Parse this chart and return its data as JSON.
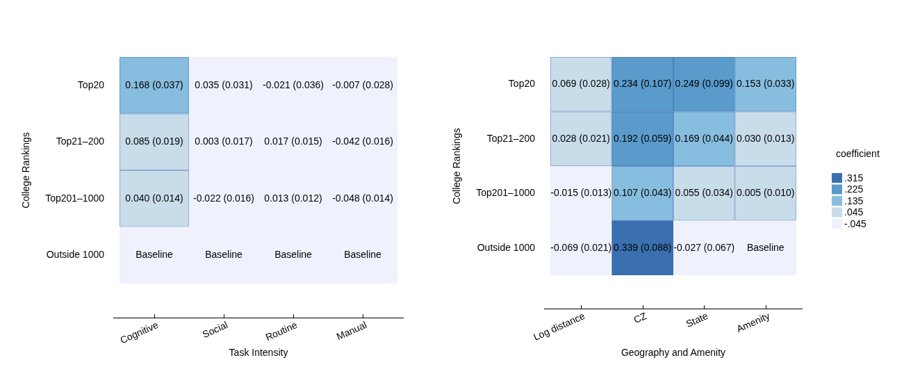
{
  "chart_data": [
    {
      "type": "heatmap",
      "xlabel": "Task Intensity",
      "ylabel": "College Rankings",
      "categories": [
        "Cognitive",
        "Social",
        "Routine",
        "Manual"
      ],
      "y_categories": [
        "Top20",
        "Top21–200",
        "Top201–1000",
        "Outside 1000"
      ],
      "cells": [
        [
          0.168,
          0.035,
          -0.021,
          -0.007
        ],
        [
          0.085,
          0.003,
          0.017,
          -0.042
        ],
        [
          0.04,
          -0.022,
          0.013,
          -0.048
        ],
        [
          null,
          null,
          null,
          null
        ]
      ],
      "cell_labels": [
        [
          "0.168",
          "0.035",
          "-0.021",
          "-0.007"
        ],
        [
          "0.085",
          "0.003",
          "0.017",
          "-0.042"
        ],
        [
          "0.040",
          "-0.022",
          "0.013",
          "-0.048"
        ],
        [
          "Baseline",
          "Baseline",
          "Baseline",
          "Baseline"
        ]
      ],
      "annotations": [
        "(0.037)",
        "(0.031)",
        "(0.036)",
        "(0.028)",
        "(0.019)",
        "(0.017)",
        "(0.015)",
        "(0.016)",
        "(0.014)",
        "(0.016)",
        "(0.012)",
        "(0.014)"
      ],
      "colors": [
        "#87bddf",
        "#eff2fd",
        "#eff2fd",
        "#eff2fd",
        "#c8dcea",
        "#eff2fd",
        "#eff2fd",
        "#eff2fd",
        "#c8dcea",
        "#eff2fd",
        "#eff2fd",
        "#eff2fd",
        "#eff2fd",
        "#eff2fd",
        "#eff2fd",
        "#eff2fd"
      ]
    },
    {
      "type": "heatmap",
      "xlabel": "Geography and Amenity",
      "ylabel": "College Rankings",
      "categories": [
        "Log distance",
        "CZ",
        "State",
        "Amenity"
      ],
      "y_categories": [
        "Top20",
        "Top21–200",
        "Top201–1000",
        "Outside 1000"
      ],
      "cells": [
        [
          0.069,
          0.234,
          0.249,
          0.153
        ],
        [
          0.028,
          0.192,
          0.169,
          0.03
        ],
        [
          -0.015,
          0.107,
          0.055,
          0.005
        ],
        [
          -0.069,
          0.339,
          -0.027,
          null
        ]
      ],
      "cell_labels": [
        [
          "0.069",
          "0.234",
          "0.249",
          "0.153"
        ],
        [
          "0.028",
          "0.192",
          "0.169",
          "0.030"
        ],
        [
          "-0.015",
          "0.107",
          "0.055",
          "0.005"
        ],
        [
          "-0.069",
          "0.339",
          "-0.027",
          "Baseline"
        ]
      ],
      "annotations": [
        "(0.028)",
        "(0.107)",
        "(0.099)",
        "(0.033)",
        "(0.021)",
        "(0.059)",
        "(0.044)",
        "(0.013)",
        "(0.013)",
        "(0.043)",
        "(0.034)",
        "(0.010)",
        "(0.021)",
        "(0.088)",
        "(0.067)"
      ],
      "clim": [
        -0.09,
        0.36
      ],
      "clabel": "coefficient",
      "cticks": [
        {
          "value": -0.045,
          "label": "-.045"
        },
        {
          "value": 0.045,
          "label": ".045"
        },
        {
          "value": 0.135,
          "label": ".135"
        },
        {
          "value": 0.225,
          "label": ".225"
        },
        {
          "value": 0.315,
          "label": ".315"
        }
      ],
      "colors": [
        "#eff2fd",
        "#c8dcea",
        "#87bddf",
        "#5a9bcb",
        "#3a70b0"
      ]
    }
  ]
}
